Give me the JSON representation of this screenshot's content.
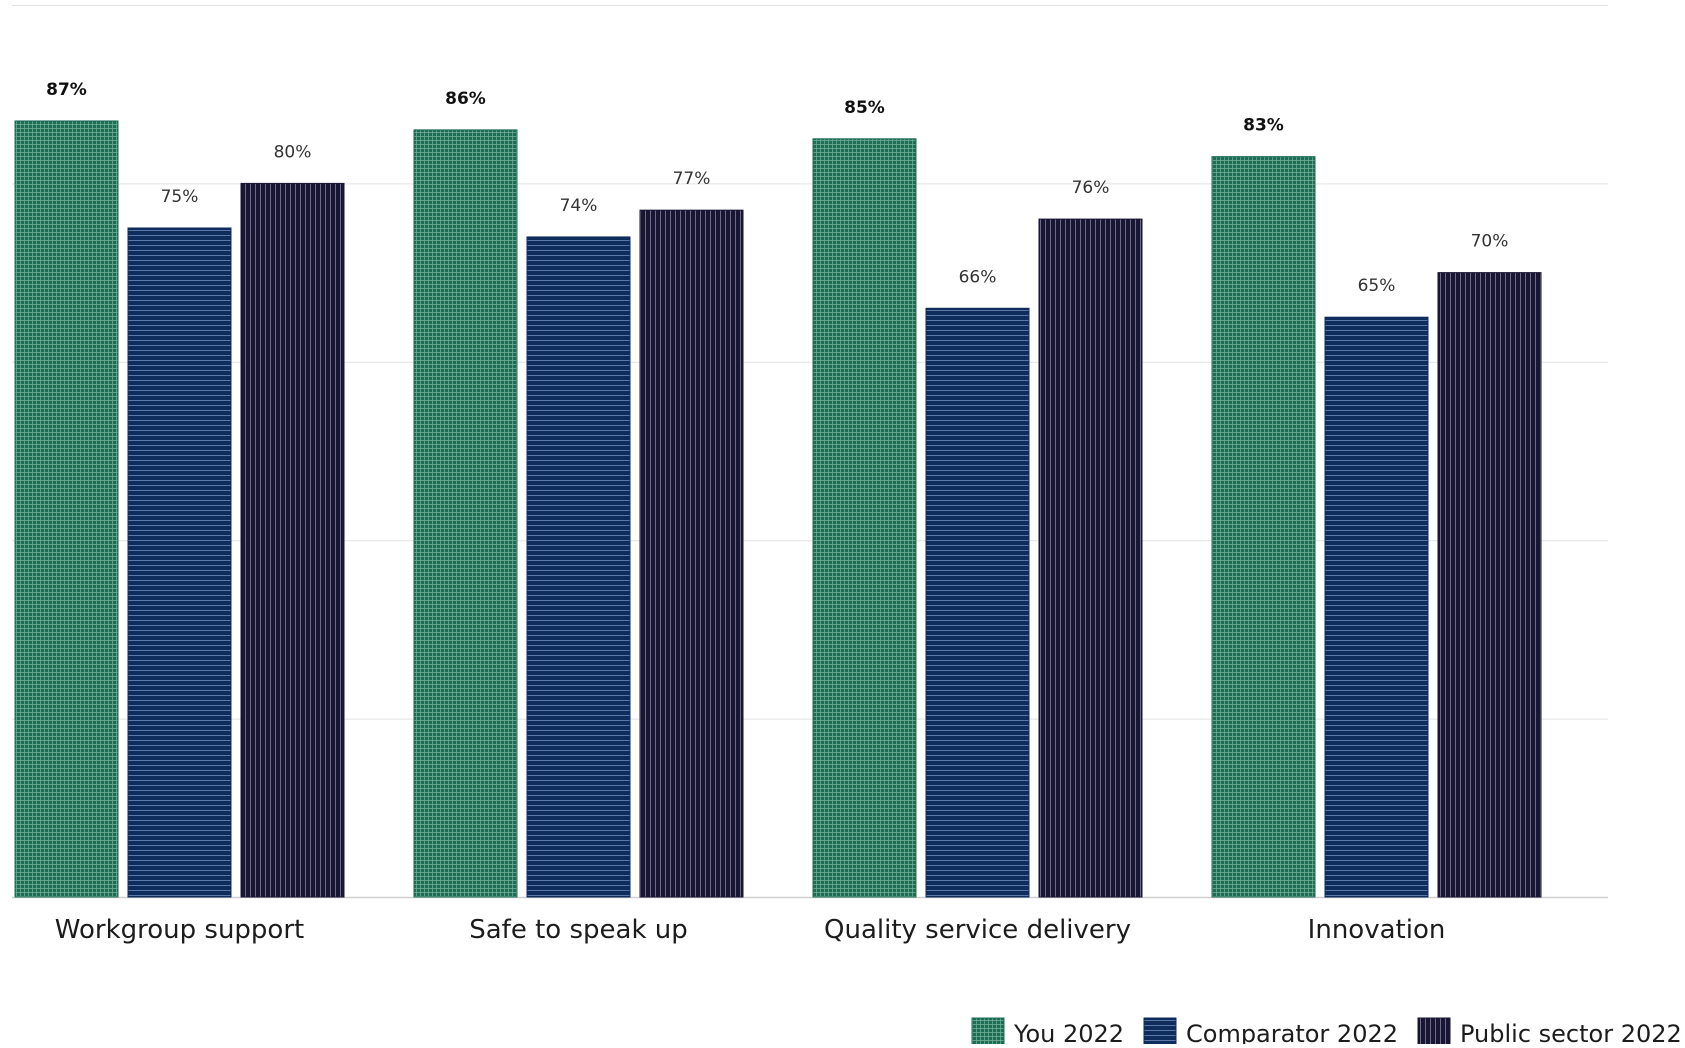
{
  "chart_data": {
    "type": "bar",
    "title": "",
    "xlabel": "",
    "ylabel": "",
    "ylim": [
      0,
      100
    ],
    "grid": true,
    "legend_position": "bottom-right",
    "categories": [
      "Workgroup support",
      "Safe to speak up",
      "Quality service delivery",
      "Innovation"
    ],
    "series": [
      {
        "name": "You 2022",
        "color": "#1e6b56",
        "pattern": "grid",
        "bold_labels": true,
        "values": [
          87,
          86,
          85,
          83
        ],
        "labels": [
          "87%",
          "86%",
          "85%",
          "83%"
        ]
      },
      {
        "name": "Comparator 2022",
        "color": "#0f2d5c",
        "pattern": "horizontal-lines",
        "bold_labels": false,
        "values": [
          75,
          74,
          66,
          65
        ],
        "labels": [
          "75%",
          "74%",
          "66%",
          "65%"
        ]
      },
      {
        "name": "Public sector 2022",
        "color": "#191633",
        "pattern": "vertical-lines",
        "bold_labels": false,
        "values": [
          80,
          77,
          76,
          70
        ],
        "labels": [
          "80%",
          "77%",
          "76%",
          "70%"
        ]
      }
    ]
  }
}
